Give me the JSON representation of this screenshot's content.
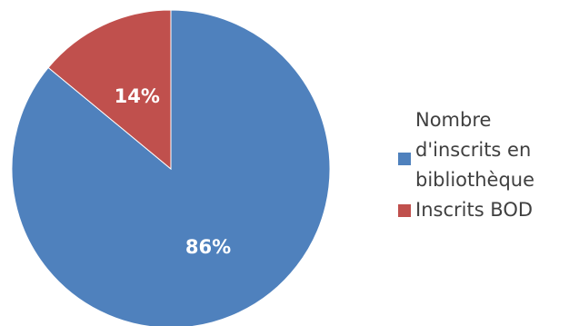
{
  "chart_data": {
    "type": "pie",
    "title": "",
    "legend_position": "right",
    "slices": [
      {
        "name": "Nombre d'inscrits en bibliothèque",
        "value": 86,
        "label": "86%",
        "color": "#4f81bd"
      },
      {
        "name": "Inscrits BOD",
        "value": 14,
        "label": "14%",
        "color": "#c0504d"
      }
    ]
  },
  "legend": {
    "items": [
      {
        "label": "Nombre\nd'inscrits en\nbibliothèque",
        "color": "#4f81bd"
      },
      {
        "label": "Inscrits BOD",
        "color": "#c0504d"
      }
    ]
  }
}
